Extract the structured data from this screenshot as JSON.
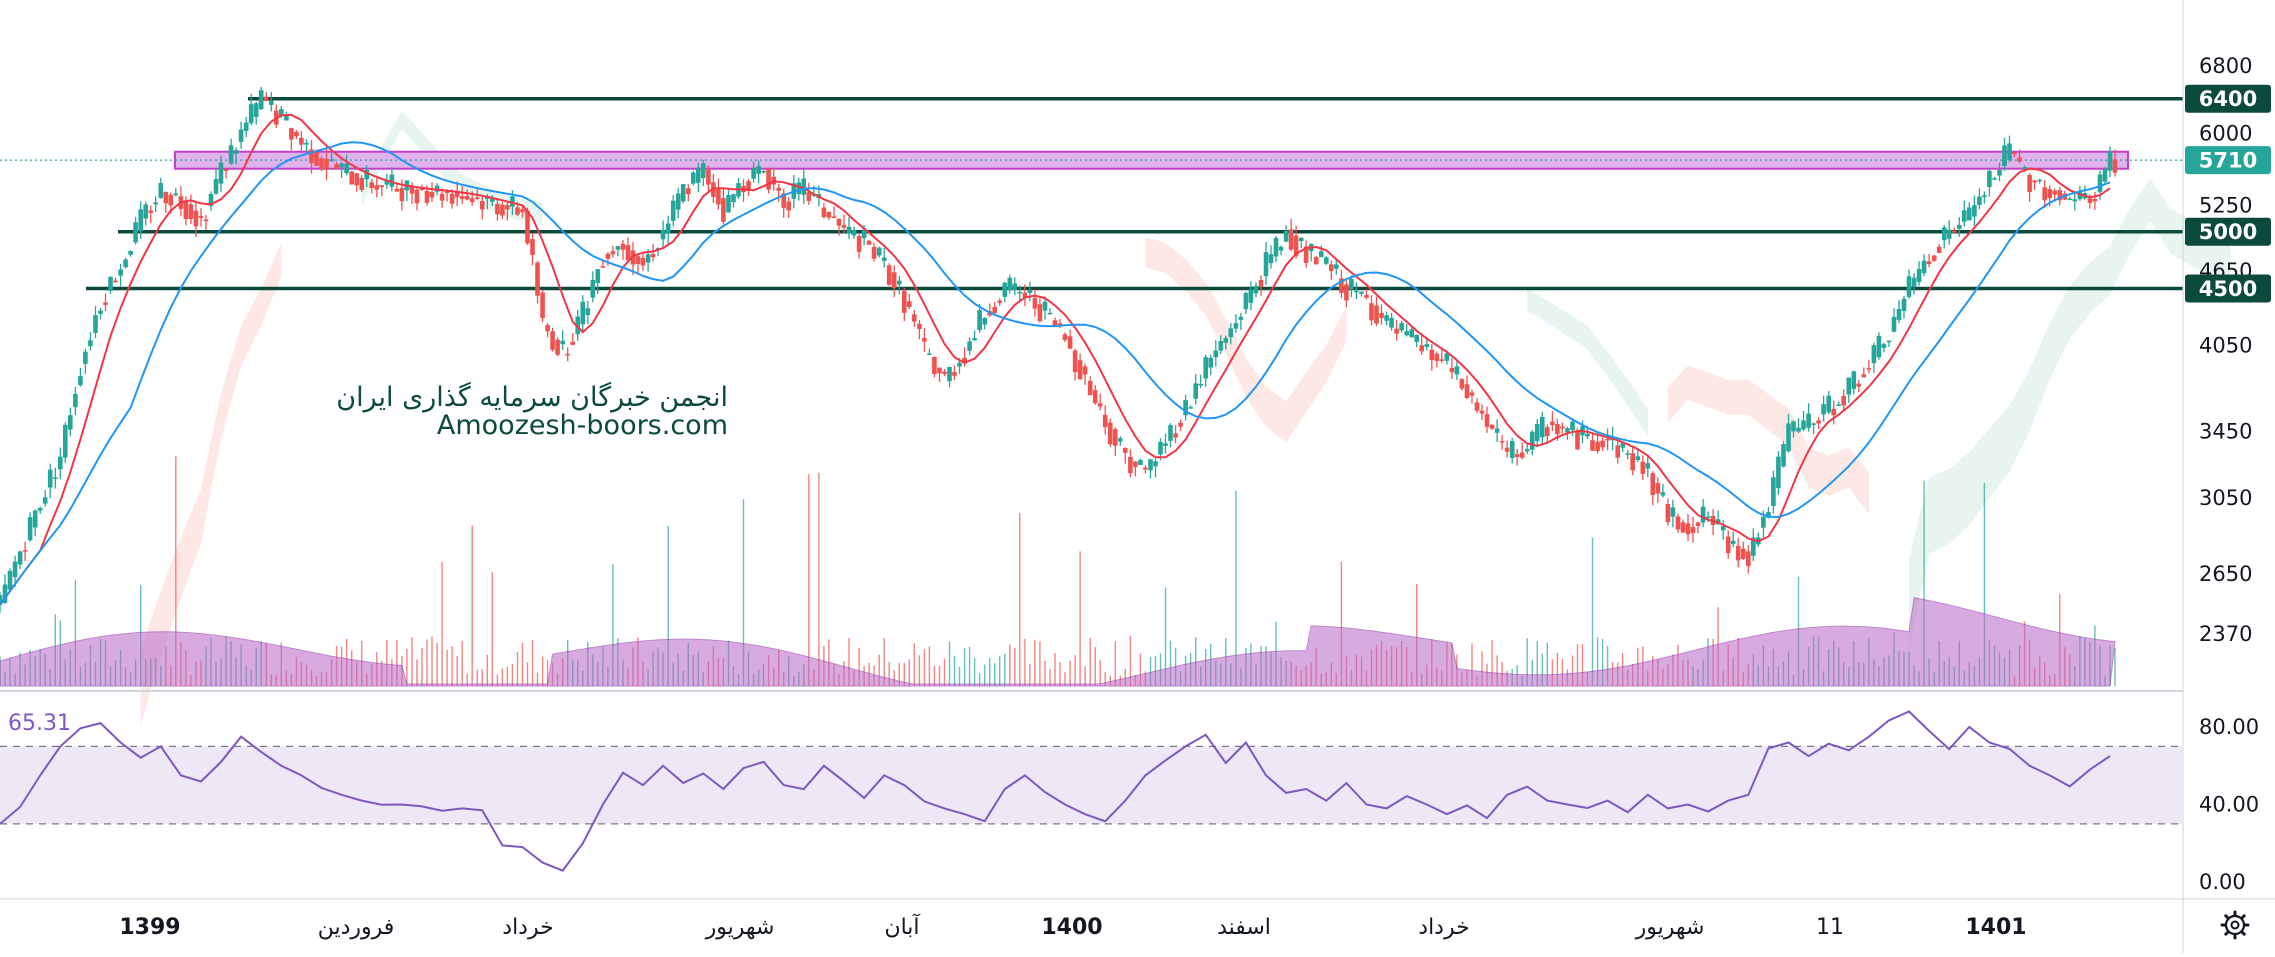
{
  "chart_data": {
    "type": "candlestick",
    "price_axis": {
      "ticks": [
        "6800",
        "6000",
        "5250",
        "4650",
        "4050",
        "3450",
        "3050",
        "2650",
        "2370"
      ],
      "scale": "log"
    },
    "horizontal_levels": [
      {
        "label": "6400",
        "value": 6400,
        "color": "#0b4a3c"
      },
      {
        "label": "5000",
        "value": 5000,
        "color": "#0b4a3c"
      },
      {
        "label": "4500",
        "value": 4500,
        "color": "#0b4a3c"
      }
    ],
    "resistance_zone": {
      "from": 5620,
      "to": 5800,
      "color": "#e1b3ec"
    },
    "last_price": {
      "label": "5710",
      "value": 5710,
      "color": "#26a69a"
    },
    "x_labels": [
      {
        "text": "1399",
        "bold": true
      },
      {
        "text": "فروردین",
        "bold": false
      },
      {
        "text": "خرداد",
        "bold": false
      },
      {
        "text": "شهریور",
        "bold": false
      },
      {
        "text": "آبان",
        "bold": false
      },
      {
        "text": "1400",
        "bold": true
      },
      {
        "text": "اسفند",
        "bold": false
      },
      {
        "text": "خرداد",
        "bold": false
      },
      {
        "text": "شهریور",
        "bold": false
      },
      {
        "text": "11",
        "bold": false
      },
      {
        "text": "1401",
        "bold": true
      }
    ],
    "price_path": [
      [
        0,
        2500
      ],
      [
        3,
        2900
      ],
      [
        6,
        3300
      ],
      [
        8,
        3900
      ],
      [
        10,
        4400
      ],
      [
        12,
        4700
      ],
      [
        14,
        5100
      ],
      [
        16,
        5400
      ],
      [
        18,
        5300
      ],
      [
        20,
        5100
      ],
      [
        22,
        5600
      ],
      [
        24,
        6000
      ],
      [
        26,
        6400
      ],
      [
        28,
        6150
      ],
      [
        30,
        5900
      ],
      [
        32,
        5700
      ],
      [
        34,
        5600
      ],
      [
        36,
        5500
      ],
      [
        38,
        5450
      ],
      [
        40,
        5420
      ],
      [
        42,
        5400
      ],
      [
        44,
        5380
      ],
      [
        46,
        5350
      ],
      [
        48,
        5300
      ],
      [
        50,
        5250
      ],
      [
        52,
        5200
      ],
      [
        54,
        4200
      ],
      [
        56,
        4000
      ],
      [
        58,
        4300
      ],
      [
        60,
        4800
      ],
      [
        62,
        4900
      ],
      [
        64,
        4700
      ],
      [
        66,
        5000
      ],
      [
        68,
        5400
      ],
      [
        70,
        5600
      ],
      [
        72,
        5200
      ],
      [
        74,
        5500
      ],
      [
        76,
        5600
      ],
      [
        78,
        5300
      ],
      [
        80,
        5400
      ],
      [
        82,
        5200
      ],
      [
        84,
        5000
      ],
      [
        86,
        4900
      ],
      [
        88,
        4700
      ],
      [
        90,
        4400
      ],
      [
        92,
        4000
      ],
      [
        94,
        3800
      ],
      [
        96,
        4000
      ],
      [
        98,
        4300
      ],
      [
        100,
        4500
      ],
      [
        102,
        4450
      ],
      [
        104,
        4300
      ],
      [
        106,
        4100
      ],
      [
        108,
        3800
      ],
      [
        110,
        3500
      ],
      [
        112,
        3300
      ],
      [
        114,
        3200
      ],
      [
        116,
        3400
      ],
      [
        118,
        3600
      ],
      [
        120,
        3900
      ],
      [
        122,
        4100
      ],
      [
        124,
        4400
      ],
      [
        126,
        4700
      ],
      [
        128,
        5000
      ],
      [
        130,
        4800
      ],
      [
        132,
        4700
      ],
      [
        134,
        4500
      ],
      [
        136,
        4400
      ],
      [
        138,
        4200
      ],
      [
        140,
        4100
      ],
      [
        142,
        4000
      ],
      [
        144,
        3900
      ],
      [
        146,
        3700
      ],
      [
        148,
        3500
      ],
      [
        150,
        3300
      ],
      [
        152,
        3350
      ],
      [
        154,
        3500
      ],
      [
        156,
        3450
      ],
      [
        158,
        3400
      ],
      [
        160,
        3400
      ],
      [
        162,
        3300
      ],
      [
        164,
        3200
      ],
      [
        166,
        2950
      ],
      [
        168,
        2900
      ],
      [
        170,
        2950
      ],
      [
        172,
        2800
      ],
      [
        174,
        2750
      ],
      [
        176,
        3000
      ],
      [
        178,
        3450
      ],
      [
        180,
        3500
      ],
      [
        182,
        3600
      ],
      [
        184,
        3750
      ],
      [
        186,
        3900
      ],
      [
        188,
        4150
      ],
      [
        190,
        4500
      ],
      [
        192,
        4800
      ],
      [
        194,
        5000
      ],
      [
        196,
        5150
      ],
      [
        198,
        5500
      ],
      [
        200,
        5800
      ],
      [
        202,
        5500
      ],
      [
        204,
        5400
      ],
      [
        206,
        5300
      ],
      [
        208,
        5300
      ],
      [
        210,
        5700
      ]
    ],
    "volume_axis_note": "",
    "rsi": {
      "label": "65.31",
      "ticks": [
        "80.00",
        "40.00",
        "0.00"
      ],
      "upper_band": 70,
      "lower_band": 30,
      "values": [
        [
          0,
          30
        ],
        [
          2,
          40
        ],
        [
          4,
          55
        ],
        [
          6,
          70
        ],
        [
          8,
          78
        ],
        [
          10,
          82
        ],
        [
          12,
          72
        ],
        [
          14,
          65
        ],
        [
          16,
          70
        ],
        [
          18,
          55
        ],
        [
          20,
          50
        ],
        [
          22,
          62
        ],
        [
          24,
          75
        ],
        [
          26,
          68
        ],
        [
          28,
          60
        ],
        [
          30,
          55
        ],
        [
          32,
          48
        ],
        [
          34,
          45
        ],
        [
          36,
          42
        ],
        [
          38,
          40
        ],
        [
          40,
          40
        ],
        [
          42,
          39
        ],
        [
          44,
          38
        ],
        [
          46,
          38
        ],
        [
          48,
          37
        ],
        [
          50,
          20
        ],
        [
          52,
          18
        ],
        [
          54,
          10
        ],
        [
          56,
          4
        ],
        [
          58,
          20
        ],
        [
          60,
          40
        ],
        [
          62,
          55
        ],
        [
          64,
          50
        ],
        [
          66,
          60
        ],
        [
          68,
          52
        ],
        [
          70,
          56
        ],
        [
          72,
          48
        ],
        [
          74,
          58
        ],
        [
          76,
          62
        ],
        [
          78,
          50
        ],
        [
          80,
          48
        ],
        [
          82,
          60
        ],
        [
          84,
          52
        ],
        [
          86,
          45
        ],
        [
          88,
          55
        ],
        [
          90,
          50
        ],
        [
          92,
          40
        ],
        [
          94,
          38
        ],
        [
          96,
          35
        ],
        [
          98,
          32
        ],
        [
          100,
          48
        ],
        [
          102,
          55
        ],
        [
          104,
          45
        ],
        [
          106,
          40
        ],
        [
          108,
          35
        ],
        [
          110,
          30
        ],
        [
          112,
          42
        ],
        [
          114,
          55
        ],
        [
          116,
          62
        ],
        [
          118,
          70
        ],
        [
          120,
          76
        ],
        [
          122,
          60
        ],
        [
          124,
          72
        ],
        [
          126,
          55
        ],
        [
          128,
          45
        ],
        [
          130,
          48
        ],
        [
          132,
          42
        ],
        [
          134,
          50
        ],
        [
          136,
          40
        ],
        [
          138,
          38
        ],
        [
          140,
          45
        ],
        [
          142,
          40
        ],
        [
          144,
          35
        ],
        [
          146,
          38
        ],
        [
          148,
          33
        ],
        [
          150,
          45
        ],
        [
          152,
          48
        ],
        [
          154,
          42
        ],
        [
          156,
          40
        ],
        [
          158,
          38
        ],
        [
          160,
          42
        ],
        [
          162,
          36
        ],
        [
          164,
          45
        ],
        [
          166,
          38
        ],
        [
          168,
          40
        ],
        [
          170,
          38
        ],
        [
          172,
          42
        ],
        [
          174,
          45
        ],
        [
          176,
          68
        ],
        [
          178,
          72
        ],
        [
          180,
          65
        ],
        [
          182,
          70
        ],
        [
          184,
          68
        ],
        [
          186,
          75
        ],
        [
          188,
          82
        ],
        [
          190,
          88
        ],
        [
          192,
          78
        ],
        [
          194,
          70
        ],
        [
          196,
          80
        ],
        [
          198,
          72
        ],
        [
          200,
          70
        ],
        [
          202,
          60
        ],
        [
          204,
          55
        ],
        [
          206,
          50
        ],
        [
          208,
          58
        ],
        [
          210,
          65
        ]
      ]
    }
  },
  "watermark": {
    "line1": "انجمن خبرگان سرمایه گذاری ایران",
    "line2": "Amoozesh-boors.com"
  },
  "colors": {
    "up": "#26a69a",
    "down": "#ef5350",
    "ma_fast": "#f23645",
    "ma_slow": "#2196f3",
    "rsi_line": "#7e57c2",
    "rsi_band_fill": "#ede7f6",
    "volume_area": "#ba68c8",
    "level": "#0b4a3c",
    "zone": "#e1b3ec",
    "zone_border": "#c040c8"
  },
  "settings_icon": "gear-icon"
}
